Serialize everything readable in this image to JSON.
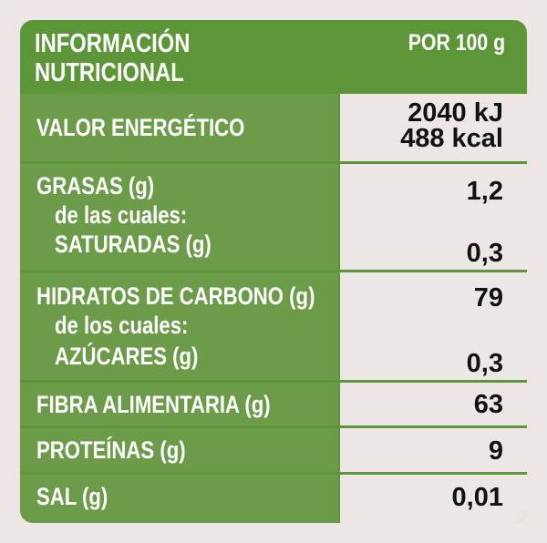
{
  "header": {
    "title": "INFORMACIÓN\nNUTRICIONAL",
    "per": "POR 100 g"
  },
  "rows": {
    "energy": {
      "label": "VALOR ENERGÉTICO",
      "kj": "2040 kJ",
      "kcal": "488 kcal"
    },
    "fat": {
      "label": "GRASAS (g)",
      "sub1": "de las cuales:",
      "sub2": "SATURADAS (g)",
      "value": "1,2",
      "sub_value": "0,3"
    },
    "carbs": {
      "label": "HIDRATOS DE CARBONO (g)",
      "sub1": "de los cuales:",
      "sub2": "AZÚCARES (g)",
      "value": "79",
      "sub_value": "0,3"
    },
    "fiber": {
      "label": "FIBRA ALIMENTARIA (g)",
      "value": "63"
    },
    "protein": {
      "label": "PROTEÍNAS (g)",
      "value": "9"
    },
    "salt": {
      "label": "SAL (g)",
      "value": "0,01"
    }
  },
  "colors": {
    "panel_green": "#5d9638",
    "label_green": "#6c9c4a",
    "background": "#ece7e4"
  }
}
